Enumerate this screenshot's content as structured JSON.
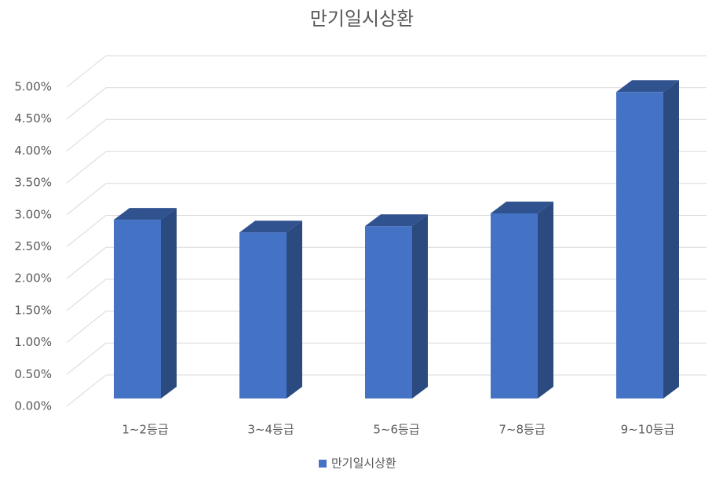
{
  "chart_data": {
    "type": "bar3d",
    "title": "만기일시상환",
    "categories": [
      "1~2등급",
      "3~4등급",
      "5~6등급",
      "7~8등급",
      "9~10등급"
    ],
    "series": [
      {
        "name": "만기일시상환",
        "color": "#4472c4",
        "values": [
          2.8,
          2.6,
          2.7,
          2.9,
          4.8
        ]
      }
    ],
    "ylim": [
      0,
      5
    ],
    "yticks": [
      {
        "value": 0,
        "label": "0.00%"
      },
      {
        "value": 0.5,
        "label": "0.50%"
      },
      {
        "value": 1,
        "label": "1.00%"
      },
      {
        "value": 1.5,
        "label": "1.50%"
      },
      {
        "value": 2,
        "label": "2.00%"
      },
      {
        "value": 2.5,
        "label": "2.50%"
      },
      {
        "value": 3,
        "label": "3.00%"
      },
      {
        "value": 3.5,
        "label": "3.50%"
      },
      {
        "value": 4,
        "label": "4.00%"
      },
      {
        "value": 4.5,
        "label": "4.50%"
      },
      {
        "value": 5,
        "label": "5.00%"
      }
    ],
    "grid": true
  }
}
